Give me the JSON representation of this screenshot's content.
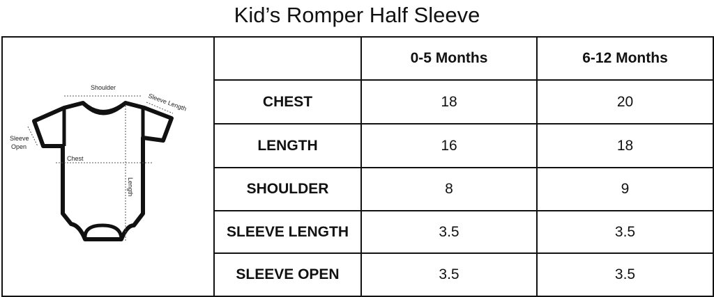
{
  "title": "Kid’s Romper Half Sleeve",
  "diagram": {
    "shoulder": "Shoulder",
    "sleeve_length": "Sleeve Length",
    "sleeve_open_1": "Sleeve",
    "sleeve_open_2": "Open",
    "chest": "Chest",
    "length": "Length"
  },
  "table": {
    "columns": [
      "",
      "0-5 Months",
      "6-12 Months"
    ],
    "rows": [
      [
        "CHEST",
        "18",
        "20"
      ],
      [
        "LENGTH",
        "16",
        "18"
      ],
      [
        "SHOULDER",
        "8",
        "9"
      ],
      [
        "SLEEVE LENGTH",
        "3.5",
        "3.5"
      ],
      [
        "SLEEVE OPEN",
        "3.5",
        "3.5"
      ]
    ]
  }
}
